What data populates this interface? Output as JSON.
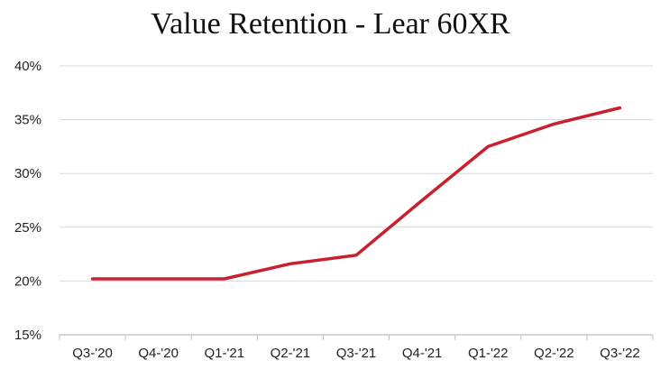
{
  "chart_data": {
    "type": "line",
    "title": "Value Retention - Lear 60XR",
    "xlabel": "",
    "ylabel": "",
    "categories": [
      "Q3-'20",
      "Q4-'20",
      "Q1-'21",
      "Q2-'21",
      "Q3-'21",
      "Q4-'21",
      "Q1-'22",
      "Q2-'22",
      "Q3-'22"
    ],
    "series": [
      {
        "values": [
          20.2,
          20.2,
          20.2,
          21.6,
          22.4,
          27.5,
          32.5,
          34.6,
          36.1
        ]
      }
    ],
    "ylim": [
      15,
      40
    ],
    "yticks": [
      {
        "value": 15,
        "label": "15%"
      },
      {
        "value": 20,
        "label": "20%"
      },
      {
        "value": 25,
        "label": "25%"
      },
      {
        "value": 30,
        "label": "30%"
      },
      {
        "value": 35,
        "label": "35%"
      },
      {
        "value": 40,
        "label": "40%"
      }
    ],
    "grid": true,
    "legend": "none",
    "line_color": "#c8202f",
    "grid_color": "#d9d9d9",
    "axis_color": "#bfbfbf"
  }
}
